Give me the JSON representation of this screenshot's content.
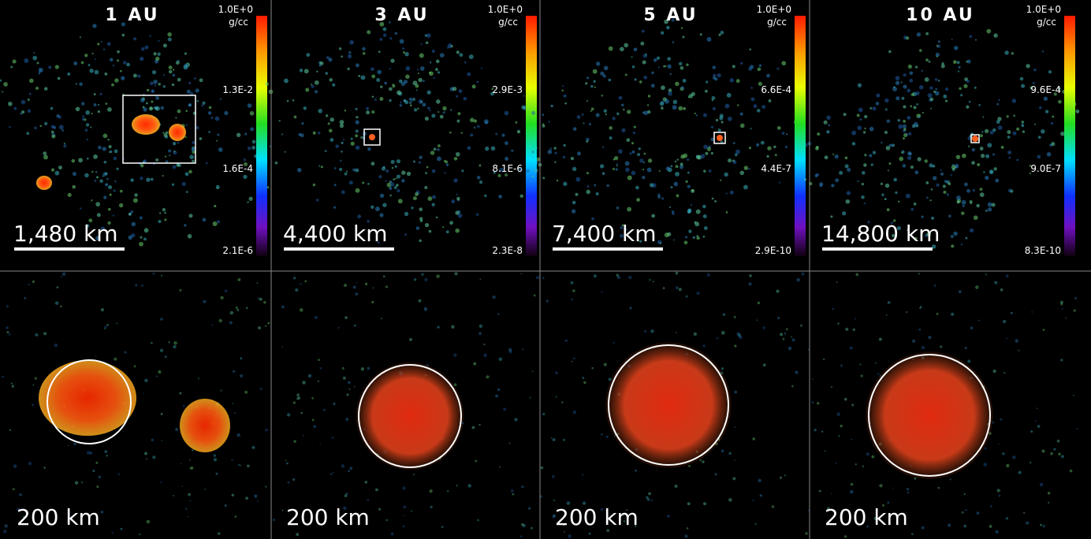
{
  "panels": [
    {
      "title": "1 AU",
      "colorbar": {
        "unit": "g/cc",
        "labels": [
          "1.0E+0",
          "1.3E-2",
          "1.6E-4",
          "2.1E-6"
        ]
      },
      "scale_bar": "1,480 km",
      "zoom_scale_bar": "200 km"
    },
    {
      "title": "3 AU",
      "colorbar": {
        "unit": "g/cc",
        "labels": [
          "1.0E+0",
          "2.9E-3",
          "8.1E-6",
          "2.3E-8"
        ]
      },
      "scale_bar": "4,400 km",
      "zoom_scale_bar": "200 km"
    },
    {
      "title": "5 AU",
      "colorbar": {
        "unit": "g/cc",
        "labels": [
          "1.0E+0",
          "6.6E-4",
          "4.4E-7",
          "2.9E-10"
        ]
      },
      "scale_bar": "7,400 km",
      "zoom_scale_bar": "200 km"
    },
    {
      "title": "10 AU",
      "colorbar": {
        "unit": "g/cc",
        "labels": [
          "1.0E+0",
          "9.6E-4",
          "9.0E-7",
          "8.3E-10"
        ]
      },
      "scale_bar": "14,800 km",
      "zoom_scale_bar": "200 km"
    }
  ]
}
